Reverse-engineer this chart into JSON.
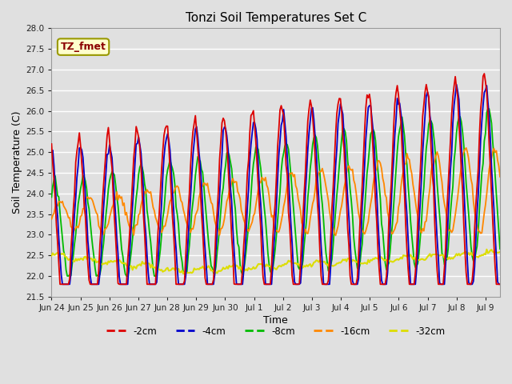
{
  "title": "Tonzi Soil Temperatures Set C",
  "xlabel": "Time",
  "ylabel": "Soil Temperature (C)",
  "ylim": [
    21.5,
    28.0
  ],
  "yticks": [
    21.5,
    22.0,
    22.5,
    23.0,
    23.5,
    24.0,
    24.5,
    25.0,
    25.5,
    26.0,
    26.5,
    27.0,
    27.5,
    28.0
  ],
  "background_color": "#e0e0e0",
  "plot_bg_color": "#e0e0e0",
  "grid_color": "#ffffff",
  "colors": {
    "-2cm": "#dd0000",
    "-4cm": "#0000cc",
    "-8cm": "#00bb00",
    "-16cm": "#ff8800",
    "-32cm": "#dddd00"
  },
  "legend_label": "TZ_fmet",
  "legend_box_facecolor": "#ffffcc",
  "legend_box_edgecolor": "#999900",
  "legend_text_color": "#8b0000",
  "tick_labels": [
    "Jun 24",
    "Jun 25",
    "Jun 26",
    "Jun 27",
    "Jun 28",
    "Jun 29",
    "Jun 30",
    "Jul 1",
    "Jul 2",
    "Jul 3",
    "Jul 4",
    "Jul 5",
    "Jul 6",
    "Jul 7",
    "Jul 8",
    "Jul 9"
  ],
  "n_days": 15.5,
  "n_points": 372
}
